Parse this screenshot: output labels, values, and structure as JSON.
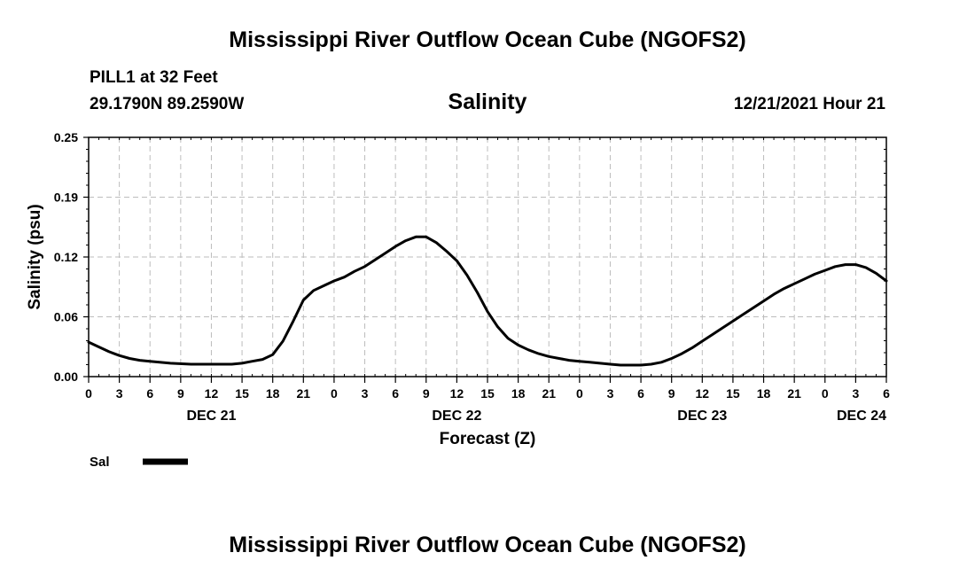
{
  "header": {
    "title": "Mississippi River Outflow Ocean Cube (NGOFS2)",
    "station": "PILL1 at 32 Feet",
    "coords": "29.1790N  89.2590W",
    "variable": "Salinity",
    "datetime": "12/21/2021 Hour 21"
  },
  "legend": {
    "label": "Sal",
    "color": "#000000"
  },
  "footer": {
    "title": "Mississippi River Outflow Ocean Cube (NGOFS2)"
  },
  "chart_data": {
    "type": "line",
    "title": "Salinity",
    "xlabel": "Forecast (Z)",
    "ylabel": "Salinity (psu)",
    "ylim": [
      0,
      0.25
    ],
    "xlim_hours": [
      0,
      78
    ],
    "grid": true,
    "legend_position": "bottom-left",
    "yticks": [
      "0.00",
      "0.06",
      "0.12",
      "0.19",
      "0.25"
    ],
    "ytick_values": [
      0,
      0.0625,
      0.125,
      0.1875,
      0.25
    ],
    "xticks": [
      "0",
      "3",
      "6",
      "9",
      "12",
      "15",
      "18",
      "21",
      "0",
      "3",
      "6",
      "9",
      "12",
      "15",
      "18",
      "21",
      "0",
      "3",
      "6",
      "9",
      "12",
      "15",
      "18",
      "21",
      "0",
      "3",
      "6"
    ],
    "date_labels": [
      {
        "label": "DEC 21",
        "hour": 12
      },
      {
        "label": "DEC 22",
        "hour": 36
      },
      {
        "label": "DEC 23",
        "hour": 60
      },
      {
        "label": "DEC 24",
        "hour": 78
      }
    ],
    "series": [
      {
        "name": "Sal",
        "x": [
          0,
          1,
          2,
          3,
          4,
          5,
          6,
          8,
          10,
          12,
          14,
          15,
          16,
          17,
          18,
          19,
          20,
          21,
          22,
          23,
          24,
          25,
          26,
          27,
          28,
          29,
          30,
          31,
          32,
          33,
          34,
          35,
          36,
          37,
          38,
          39,
          40,
          41,
          42,
          43,
          44,
          45,
          46,
          47,
          48,
          49,
          50,
          51,
          52,
          53,
          54,
          55,
          56,
          57,
          58,
          59,
          60,
          61,
          62,
          63,
          64,
          65,
          66,
          67,
          68,
          69,
          70,
          71,
          72,
          73,
          74,
          75,
          76,
          77,
          78
        ],
        "values": [
          0.036,
          0.031,
          0.026,
          0.022,
          0.019,
          0.017,
          0.016,
          0.014,
          0.013,
          0.013,
          0.013,
          0.014,
          0.016,
          0.018,
          0.023,
          0.037,
          0.058,
          0.08,
          0.09,
          0.095,
          0.1,
          0.104,
          0.11,
          0.115,
          0.122,
          0.129,
          0.136,
          0.142,
          0.146,
          0.146,
          0.14,
          0.131,
          0.121,
          0.106,
          0.088,
          0.068,
          0.052,
          0.04,
          0.033,
          0.028,
          0.024,
          0.021,
          0.019,
          0.017,
          0.016,
          0.015,
          0.014,
          0.013,
          0.012,
          0.012,
          0.012,
          0.013,
          0.015,
          0.019,
          0.024,
          0.03,
          0.037,
          0.044,
          0.051,
          0.058,
          0.065,
          0.072,
          0.079,
          0.086,
          0.092,
          0.097,
          0.102,
          0.107,
          0.111,
          0.115,
          0.117,
          0.117,
          0.114,
          0.108,
          0.1
        ]
      }
    ]
  }
}
